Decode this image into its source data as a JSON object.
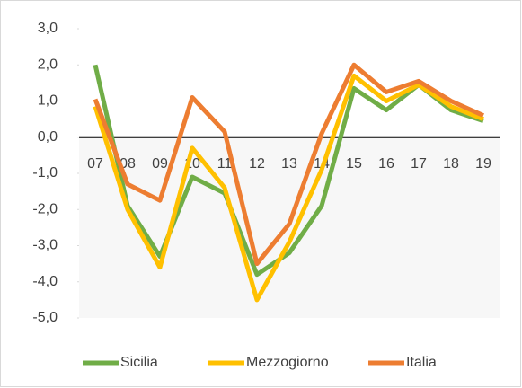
{
  "chart_data": {
    "type": "line",
    "categories": [
      "07",
      "08",
      "09",
      "10",
      "11",
      "12",
      "13",
      "14",
      "15",
      "16",
      "17",
      "18",
      "19"
    ],
    "series": [
      {
        "name": "Sicilia",
        "color": "#70ad47",
        "values": [
          2.0,
          -1.9,
          -3.3,
          -1.1,
          -1.55,
          -3.8,
          -3.2,
          -1.9,
          1.35,
          0.75,
          1.45,
          0.75,
          0.45
        ]
      },
      {
        "name": "Mezzogiorno",
        "color": "#ffc000",
        "values": [
          0.85,
          -2.0,
          -3.6,
          -0.3,
          -1.4,
          -4.5,
          -2.9,
          -0.9,
          1.7,
          1.0,
          1.45,
          0.85,
          0.5
        ]
      },
      {
        "name": "Italia",
        "color": "#ed7d31",
        "values": [
          1.05,
          -1.3,
          -1.75,
          1.1,
          0.15,
          -3.5,
          -2.4,
          0.1,
          2.0,
          1.25,
          1.55,
          1.0,
          0.6
        ]
      }
    ],
    "ylim": [
      -5,
      3
    ],
    "yticks": [
      {
        "value": 3,
        "label": "3,0"
      },
      {
        "value": 2,
        "label": "2,0"
      },
      {
        "value": 1,
        "label": "1,0"
      },
      {
        "value": 0,
        "label": "0,0"
      },
      {
        "value": -1,
        "label": "-1,0"
      },
      {
        "value": -2,
        "label": "-2,0"
      },
      {
        "value": -3,
        "label": "-3,0"
      },
      {
        "value": -4,
        "label": "-4,0"
      },
      {
        "value": -5,
        "label": "-5,0"
      }
    ],
    "legend": "bottom"
  }
}
